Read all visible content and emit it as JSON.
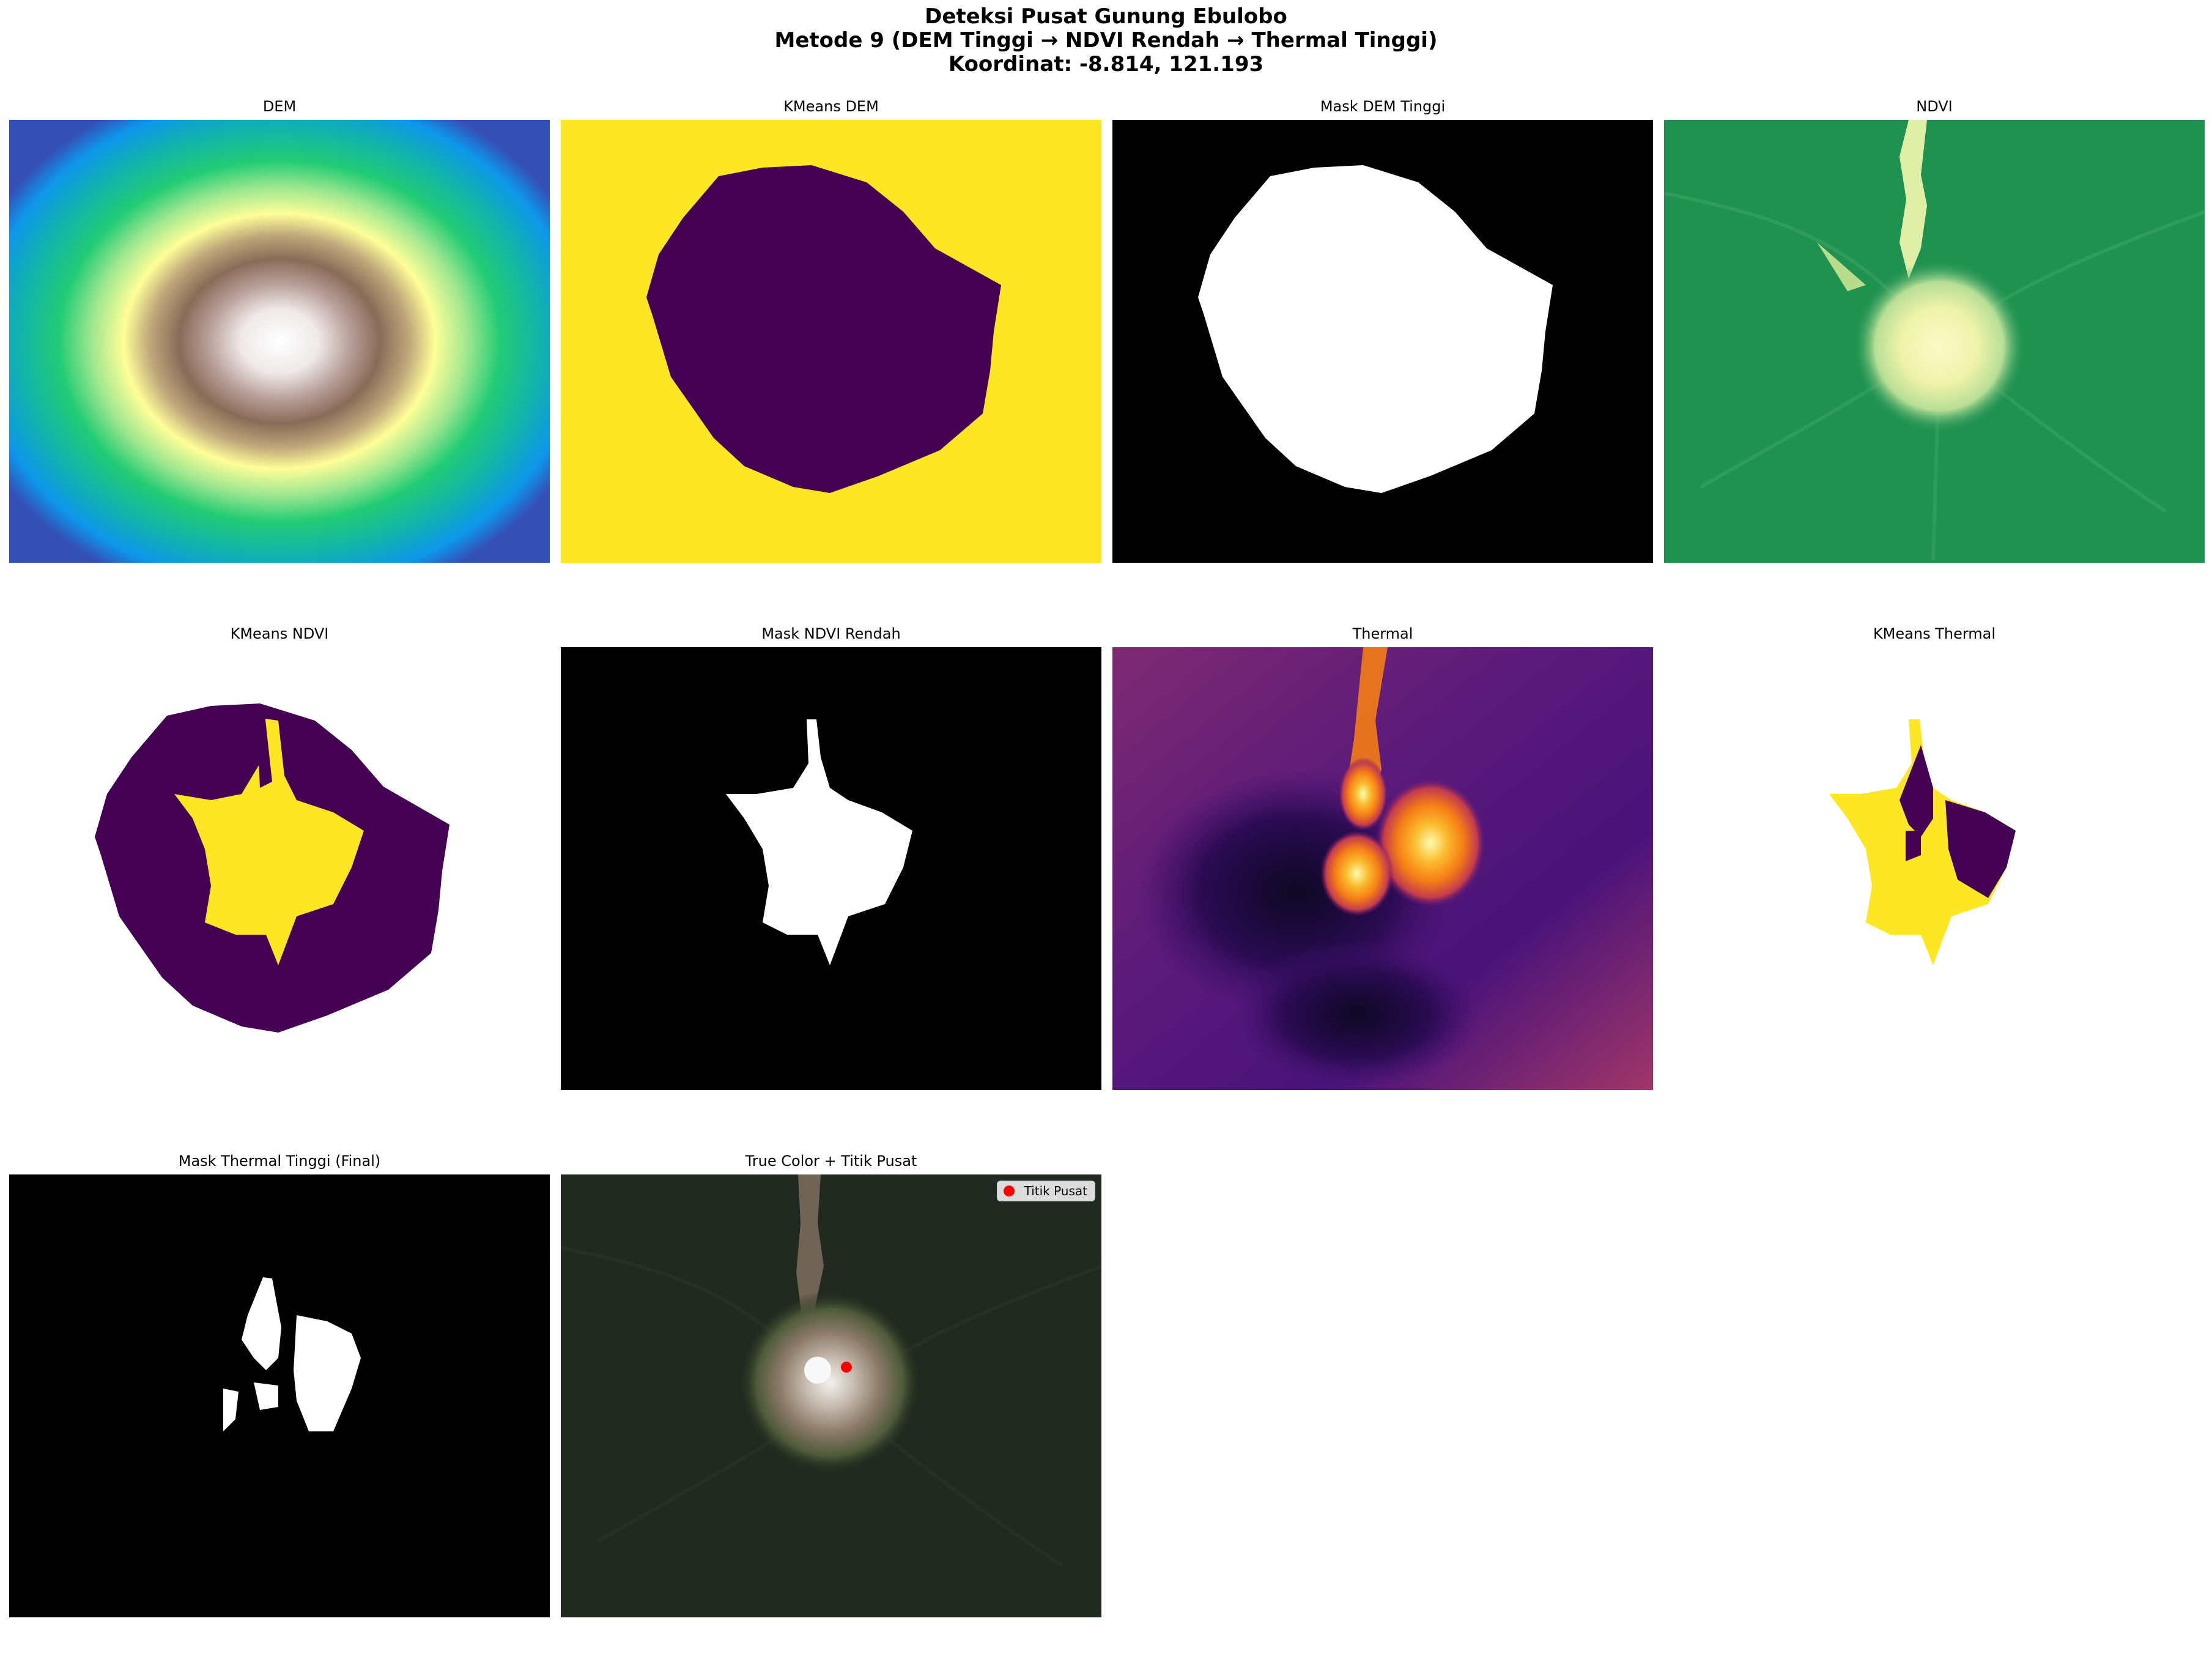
{
  "figure": {
    "title_line1": "Deteksi Pusat Gunung Ebulobo",
    "title_line2": "Metode 9 (DEM Tinggi → NDVI Rendah → Thermal Tinggi)",
    "title_line3": "Koordinat: -8.814, 121.193"
  },
  "panels": {
    "dem": {
      "title": "DEM",
      "colormap": "terrain"
    },
    "kmeans_dem": {
      "title": "KMeans DEM",
      "colors": [
        "#fde725",
        "#440154"
      ]
    },
    "mask_dem": {
      "title": "Mask DEM Tinggi"
    },
    "ndvi": {
      "title": "NDVI",
      "colormap": "YlGn-like"
    },
    "kmeans_ndvi": {
      "title": "KMeans NDVI"
    },
    "mask_ndvi": {
      "title": "Mask NDVI Rendah"
    },
    "thermal": {
      "title": "Thermal",
      "colormap": "inferno"
    },
    "kmeans_thermal": {
      "title": "KMeans Thermal"
    },
    "mask_thermal": {
      "title": "Mask Thermal Tinggi (Final)"
    },
    "true_color": {
      "title": "True Color + Titik Pusat",
      "legend_label": "Titik Pusat",
      "marker_color": "#ff0000"
    }
  }
}
